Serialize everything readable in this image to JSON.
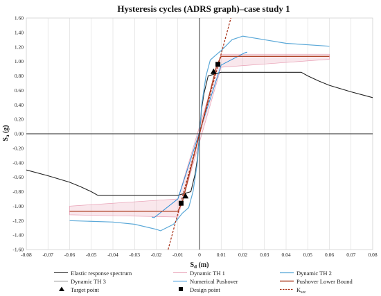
{
  "chart_data": {
    "type": "line",
    "title": "Hysteresis cycles (ADRS graph)–case study 1",
    "xlabel": {
      "main": "S",
      "sub": "d",
      "unit": " (m)"
    },
    "ylabel": {
      "main": "S",
      "sub": "a",
      "unit": " (g)"
    },
    "xlim": [
      -0.08,
      0.08
    ],
    "ylim": [
      -1.6,
      1.6
    ],
    "x_ticks": [
      -0.08,
      -0.07,
      -0.06,
      -0.05,
      -0.04,
      -0.03,
      -0.02,
      -0.01,
      0,
      0.01,
      0.02,
      0.03,
      0.04,
      0.05,
      0.06,
      0.07,
      0.08
    ],
    "x_tick_labels": [
      "-0.08",
      "-0.07",
      "-0.06",
      "-0.05",
      "-0.04",
      "-0.03",
      "-0.02",
      "-0.01",
      "0",
      "0.01",
      "0.02",
      "0.03",
      "0.04",
      "0.05",
      "0.06",
      "0.07",
      "0.08"
    ],
    "y_ticks": [
      -1.6,
      -1.4,
      -1.2,
      -1.0,
      -0.8,
      -0.6,
      -0.4,
      -0.2,
      0,
      0.2,
      0.4,
      0.6,
      0.8,
      1.0,
      1.2,
      1.4,
      1.6
    ],
    "y_tick_labels": [
      "-1.60",
      "-1.40",
      "-1.20",
      "-1.00",
      "-0.80",
      "-0.60",
      "-0.40",
      "-0.20",
      "0.00",
      "0.20",
      "0.40",
      "0.60",
      "0.80",
      "1.00",
      "1.20",
      "1.40",
      "1.60"
    ],
    "grid": "vertical",
    "legend_position": "bottom",
    "series": [
      {
        "name": "Elastic response spectrum",
        "color": "#222222",
        "width": 1.1,
        "x": [
          -0.08,
          -0.07,
          -0.06,
          -0.055,
          -0.05,
          -0.047,
          -0.03,
          -0.01,
          -0.004,
          -0.002,
          -0.001,
          0,
          0.001,
          0.002,
          0.004,
          0.01,
          0.03,
          0.047,
          0.05,
          0.055,
          0.06,
          0.07,
          0.08
        ],
        "y": [
          -0.5,
          -0.58,
          -0.67,
          -0.73,
          -0.8,
          -0.85,
          -0.85,
          -0.85,
          -0.8,
          -0.55,
          -0.35,
          0,
          0.35,
          0.55,
          0.8,
          0.85,
          0.85,
          0.85,
          0.8,
          0.73,
          0.67,
          0.58,
          0.5
        ]
      },
      {
        "name": "Dynamic TH 1",
        "color": "#e8a0b5",
        "width": 0.7,
        "band": true,
        "x": [
          -0.06,
          -0.01,
          0.01,
          0.06
        ],
        "upper": [
          -1.0,
          -0.9,
          1.1,
          1.1
        ],
        "lower": [
          -1.12,
          -1.15,
          0.92,
          1.03
        ]
      },
      {
        "name": "Dynamic TH 2",
        "color": "#5aa8d8",
        "width": 1.2,
        "x": [
          -0.06,
          -0.04,
          -0.03,
          -0.02,
          -0.018,
          -0.012,
          -0.008,
          -0.005,
          -0.003,
          -0.001,
          0,
          0.001,
          0.003,
          0.005,
          0.008,
          0.01,
          0.015,
          0.02,
          0.03,
          0.04,
          0.06
        ],
        "y": [
          -1.2,
          -1.22,
          -1.25,
          -1.32,
          -1.34,
          -1.25,
          -1.1,
          -1.02,
          -0.8,
          -0.4,
          0,
          0.4,
          0.8,
          1.02,
          1.1,
          1.15,
          1.3,
          1.35,
          1.3,
          1.25,
          1.21
        ]
      },
      {
        "name": "Dynamic TH 3",
        "color": "#8a8a8a",
        "width": 0.6
      },
      {
        "name": "Numerical Pushover",
        "color": "#2a8fd8",
        "width": 1.0,
        "x": [
          -0.022,
          -0.021,
          -0.01,
          0.01,
          0.021,
          0.022
        ],
        "y": [
          -1.15,
          -1.16,
          -0.9,
          0.95,
          1.12,
          1.13
        ]
      },
      {
        "name": "Pushover Lower Bound",
        "color": "#b0462a",
        "width": 1.4,
        "x": [
          -0.06,
          -0.01,
          -0.008,
          0.008,
          0.01,
          0.06
        ],
        "y": [
          -1.07,
          -1.07,
          -0.95,
          0.95,
          1.07,
          1.07
        ]
      },
      {
        "name": "Target point",
        "marker": "triangle",
        "color": "#000000",
        "x": [
          -0.0065,
          0.0065
        ],
        "y": [
          -0.86,
          0.86
        ]
      },
      {
        "name": "Design point",
        "marker": "square",
        "color": "#000000",
        "x": [
          -0.0085,
          0.0085
        ],
        "y": [
          -0.96,
          0.96
        ]
      },
      {
        "name": "K",
        "name_sub": "sec",
        "color": "#a42a10",
        "width": 1.2,
        "dashed": true,
        "x": [
          -0.0145,
          0.0145
        ],
        "y": [
          -1.6,
          1.6
        ]
      }
    ],
    "legend_rows": [
      [
        "Elastic response spectrum",
        "Dynamic TH 1",
        "Dynamic TH 2"
      ],
      [
        "Dynamic TH 3",
        "Numerical Pushover",
        "Pushover Lower Bound"
      ],
      [
        "Target point",
        "Design point",
        "K"
      ]
    ]
  }
}
